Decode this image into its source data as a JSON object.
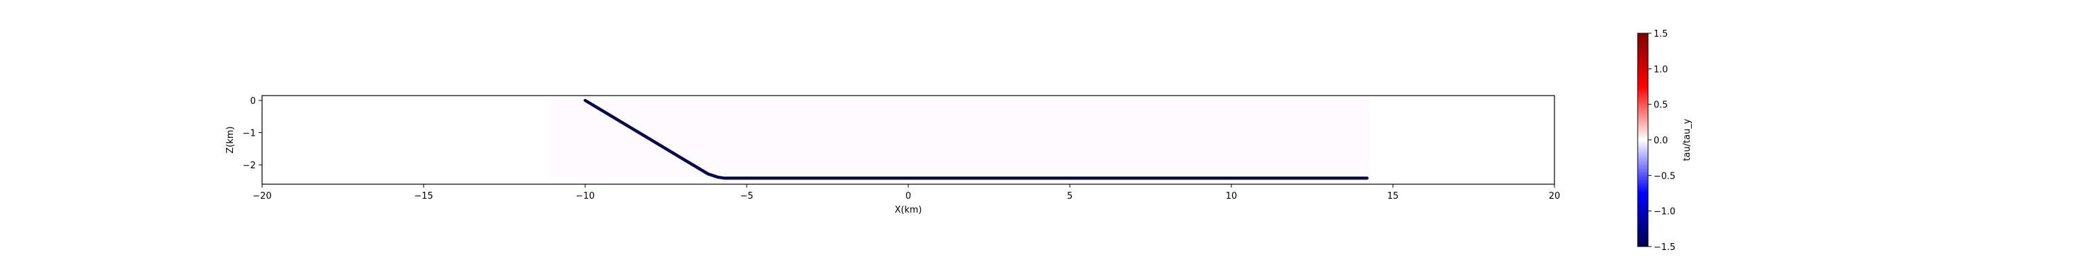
{
  "chart_data": {
    "type": "line",
    "xlabel": "X(km)",
    "ylabel": "Z(km)",
    "xlim": [
      -20,
      20
    ],
    "ylim": [
      -2.6,
      0.15
    ],
    "xticks": [
      -20,
      -15,
      -10,
      -5,
      0,
      5,
      10,
      15,
      20
    ],
    "xtick_labels": [
      "−20",
      "−15",
      "−10",
      "−5",
      "0",
      "5",
      "10",
      "15",
      "20"
    ],
    "yticks": [
      0,
      -1,
      -2
    ],
    "ytick_labels": [
      "0",
      "−1",
      "−2"
    ],
    "grid": false,
    "series": [
      {
        "color": "#0a0a4a",
        "x": [
          -10.0,
          -9.0,
          -8.0,
          -7.0,
          -6.2,
          -5.9,
          -5.7,
          -5.5,
          0.0,
          5.0,
          10.0,
          14.2
        ],
        "y": [
          0.0,
          -0.6,
          -1.2,
          -1.8,
          -2.28,
          -2.38,
          -2.41,
          -2.41,
          -2.41,
          -2.41,
          -2.41,
          -2.41
        ]
      }
    ],
    "colorbar": {
      "label": "tau/tau_y",
      "cmap": "seismic",
      "range": [
        -1.5,
        1.5
      ],
      "ticks": [
        1.5,
        1.0,
        0.5,
        0.0,
        -0.5,
        -1.0,
        -1.5
      ],
      "tick_labels": [
        "1.5",
        "1.0",
        "0.5",
        "0.0",
        "−0.5",
        "−1.0",
        "−1.5"
      ],
      "colors": [
        "#00004c",
        "#0000ff",
        "#ffffff",
        "#ff0000",
        "#800000"
      ]
    }
  }
}
